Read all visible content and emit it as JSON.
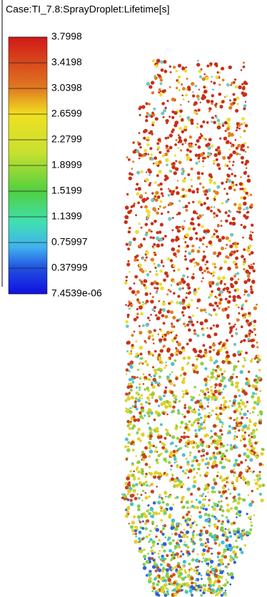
{
  "title": "Case:TI_7.8:SprayDroplet:Lifetime[s]",
  "legend": {
    "labels": [
      "3.7998",
      "3.4198",
      "3.0398",
      "2.6599",
      "2.2799",
      "1.8999",
      "1.5199",
      "1.1399",
      "0.75997",
      "0.37999",
      "7.4539e-06"
    ]
  }
}
